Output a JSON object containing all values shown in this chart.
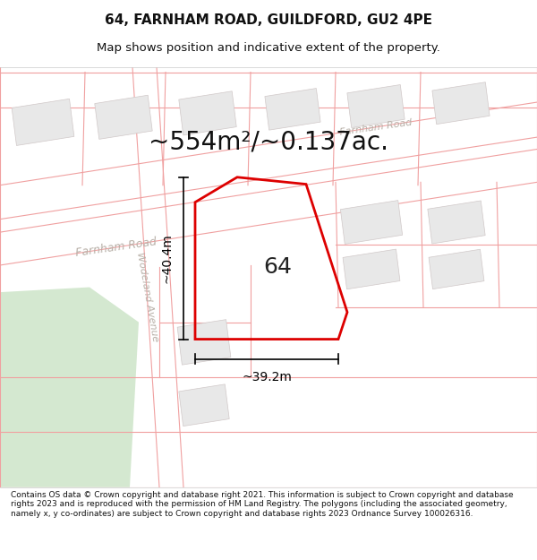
{
  "title": "64, FARNHAM ROAD, GUILDFORD, GU2 4PE",
  "subtitle": "Map shows position and indicative extent of the property.",
  "area_label": "~554m²/~0.137ac.",
  "number_label": "64",
  "width_label": "~39.2m",
  "height_label": "~40.4m",
  "footer": "Contains OS data © Crown copyright and database right 2021. This information is subject to Crown copyright and database rights 2023 and is reproduced with the permission of HM Land Registry. The polygons (including the associated geometry, namely x, y co-ordinates) are subject to Crown copyright and database rights 2023 Ordnance Survey 100026316.",
  "map_bg": "#ffffff",
  "road_line_color": "#f0a0a0",
  "building_color": "#e8e8e8",
  "building_edge": "#d0c8c8",
  "green_color": "#d4e8d0",
  "property_color": "#dd0000",
  "dim_line_color": "#000000",
  "road_label_color": "#b8b0a8",
  "area_label_color": "#111111",
  "figure_bg": "#ffffff",
  "title_fontsize": 11,
  "subtitle_fontsize": 9.5,
  "footer_fontsize": 6.5,
  "area_fontsize": 20,
  "number_fontsize": 18,
  "dim_fontsize": 10,
  "road_label_fontsize": 9
}
